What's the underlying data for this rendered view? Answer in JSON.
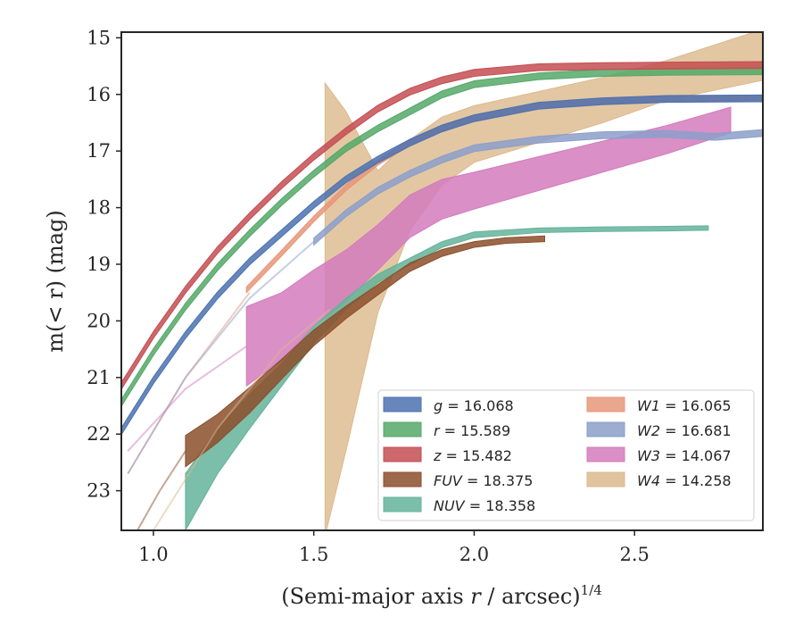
{
  "chart_data": {
    "type": "line",
    "title": "",
    "xlabel": {
      "prefix": "(Semi-major axis ",
      "var": "r",
      "suffix": " / arcsec)",
      "exponent": "1/4"
    },
    "ylabel": "m(< r) (mag)",
    "xlim": [
      0.9,
      2.9
    ],
    "ylim": [
      23.7,
      14.9
    ],
    "y_inverted": true,
    "grid": false,
    "x_ticks": [
      1.0,
      1.5,
      2.0,
      2.5
    ],
    "x_tick_labels": [
      "1.0",
      "1.5",
      "2.0",
      "2.5"
    ],
    "y_ticks": [
      15,
      16,
      17,
      18,
      19,
      20,
      21,
      22,
      23
    ],
    "y_tick_labels": [
      "15",
      "16",
      "17",
      "18",
      "19",
      "20",
      "21",
      "22",
      "23"
    ],
    "legend_position": "lower-right",
    "series": [
      {
        "name": "g",
        "value": "16.068",
        "color": "#4c72b0",
        "style": "band",
        "x": [
          0.9,
          1.0,
          1.1,
          1.2,
          1.3,
          1.4,
          1.5,
          1.6,
          1.7,
          1.8,
          1.9,
          2.0,
          2.2,
          2.4,
          2.6,
          2.9
        ],
        "y": [
          21.95,
          21.05,
          20.25,
          19.55,
          18.95,
          18.45,
          17.95,
          17.5,
          17.15,
          16.85,
          16.6,
          16.42,
          16.2,
          16.12,
          16.08,
          16.07
        ],
        "width": 0.12
      },
      {
        "name": "r",
        "value": "15.589",
        "color": "#55a868",
        "style": "band",
        "x": [
          0.9,
          1.0,
          1.1,
          1.2,
          1.3,
          1.4,
          1.5,
          1.6,
          1.7,
          1.8,
          1.9,
          2.0,
          2.2,
          2.4,
          2.6,
          2.9
        ],
        "y": [
          21.45,
          20.55,
          19.75,
          19.05,
          18.45,
          17.9,
          17.4,
          16.95,
          16.6,
          16.3,
          16.0,
          15.82,
          15.68,
          15.62,
          15.6,
          15.59
        ],
        "width": 0.12
      },
      {
        "name": "z",
        "value": "15.482",
        "color": "#c44e52",
        "style": "band",
        "x": [
          0.9,
          1.0,
          1.1,
          1.2,
          1.3,
          1.4,
          1.5,
          1.6,
          1.7,
          1.8,
          1.9,
          2.0,
          2.2,
          2.4,
          2.6,
          2.9
        ],
        "y": [
          21.15,
          20.25,
          19.45,
          18.75,
          18.15,
          17.6,
          17.1,
          16.65,
          16.25,
          15.95,
          15.75,
          15.62,
          15.52,
          15.5,
          15.49,
          15.48
        ],
        "width": 0.12
      },
      {
        "name": "FUV",
        "value": "18.375",
        "color": "#8c4f2b",
        "style": "band",
        "x": [
          1.1,
          1.2,
          1.3,
          1.4,
          1.5,
          1.6,
          1.7,
          1.8,
          1.9,
          2.0,
          2.1,
          2.22
        ],
        "y": [
          22.3,
          21.9,
          21.4,
          20.85,
          20.3,
          19.85,
          19.45,
          19.05,
          18.8,
          18.65,
          18.58,
          18.55
        ],
        "width": [
          0.55,
          0.5,
          0.45,
          0.35,
          0.28,
          0.22,
          0.18,
          0.15,
          0.12,
          0.1,
          0.1,
          0.1
        ]
      },
      {
        "name": "NUV",
        "value": "18.358",
        "color": "#64b39a",
        "style": "band",
        "x": [
          1.1,
          1.2,
          1.3,
          1.4,
          1.5,
          1.6,
          1.7,
          1.8,
          1.9,
          2.0,
          2.2,
          2.4,
          2.6,
          2.73
        ],
        "y": [
          23.2,
          22.3,
          21.6,
          20.95,
          20.25,
          19.7,
          19.25,
          18.95,
          18.65,
          18.48,
          18.4,
          18.38,
          18.37,
          18.36
        ],
        "width": [
          1.0,
          0.8,
          0.6,
          0.4,
          0.3,
          0.2,
          0.15,
          0.12,
          0.1,
          0.1,
          0.08,
          0.08,
          0.08,
          0.08
        ]
      },
      {
        "name": "W1",
        "value": "16.065",
        "color": "#e8967a",
        "style": "band",
        "x": [
          1.29,
          1.4,
          1.5,
          1.6,
          1.7,
          1.8,
          1.9,
          2.0,
          2.2,
          2.4,
          2.6,
          2.9
        ],
        "y": [
          19.45,
          18.8,
          18.2,
          17.65,
          17.2,
          16.85,
          16.6,
          16.42,
          16.2,
          16.12,
          16.08,
          16.06
        ],
        "width": 0.1
      },
      {
        "name": "W2",
        "value": "16.681",
        "color": "#8c9fca",
        "style": "band",
        "x": [
          1.5,
          1.6,
          1.7,
          1.8,
          1.9,
          2.0,
          2.2,
          2.4,
          2.6,
          2.75,
          2.9
        ],
        "y": [
          18.6,
          18.1,
          17.7,
          17.4,
          17.15,
          16.95,
          16.8,
          16.72,
          16.7,
          16.75,
          16.68
        ],
        "width": 0.12
      },
      {
        "name": "W3",
        "value": "14.067",
        "color": "#d47bbd",
        "style": "band",
        "x": [
          1.29,
          1.4,
          1.5,
          1.6,
          1.7,
          1.8,
          1.9,
          2.0,
          2.2,
          2.4,
          2.6,
          2.8
        ],
        "y": [
          20.45,
          20.1,
          19.6,
          19.2,
          18.7,
          18.15,
          17.85,
          17.7,
          17.4,
          17.1,
          16.8,
          16.45
        ],
        "width": [
          1.4,
          1.2,
          1.0,
          0.9,
          0.8,
          0.75,
          0.7,
          0.65,
          0.6,
          0.55,
          0.5,
          0.45
        ]
      },
      {
        "name": "W4",
        "value": "14.258",
        "color": "#dcb98c",
        "style": "band",
        "x": [
          1.535,
          1.6,
          1.7,
          1.8,
          1.9,
          2.0,
          2.2,
          2.4,
          2.6,
          2.9
        ],
        "y": [
          19.8,
          19.3,
          18.6,
          17.6,
          17.0,
          16.7,
          16.4,
          16.1,
          15.75,
          15.3
        ],
        "width": [
          8.0,
          6.0,
          2.5,
          1.6,
          1.2,
          1.0,
          0.9,
          0.8,
          0.7,
          0.9
        ]
      }
    ],
    "faint_lines": [
      {
        "color": "#e8967a",
        "x": [
          0.92,
          1.1,
          1.3
        ],
        "y": [
          22.7,
          21.0,
          19.5
        ]
      },
      {
        "color": "#dcb98c",
        "x": [
          1.0,
          1.2,
          1.4,
          1.55
        ],
        "y": [
          23.7,
          21.9,
          20.5,
          19.8
        ]
      },
      {
        "color": "#8c9fca",
        "x": [
          0.92,
          1.1,
          1.3,
          1.5
        ],
        "y": [
          22.7,
          21.0,
          19.6,
          18.6
        ]
      },
      {
        "color": "#d47bbd",
        "x": [
          0.92,
          1.1,
          1.29
        ],
        "y": [
          22.3,
          21.2,
          20.45
        ]
      },
      {
        "color": "#8c4f2b",
        "x": [
          0.95,
          1.02,
          1.1
        ],
        "y": [
          23.7,
          23.0,
          22.3
        ]
      }
    ]
  }
}
